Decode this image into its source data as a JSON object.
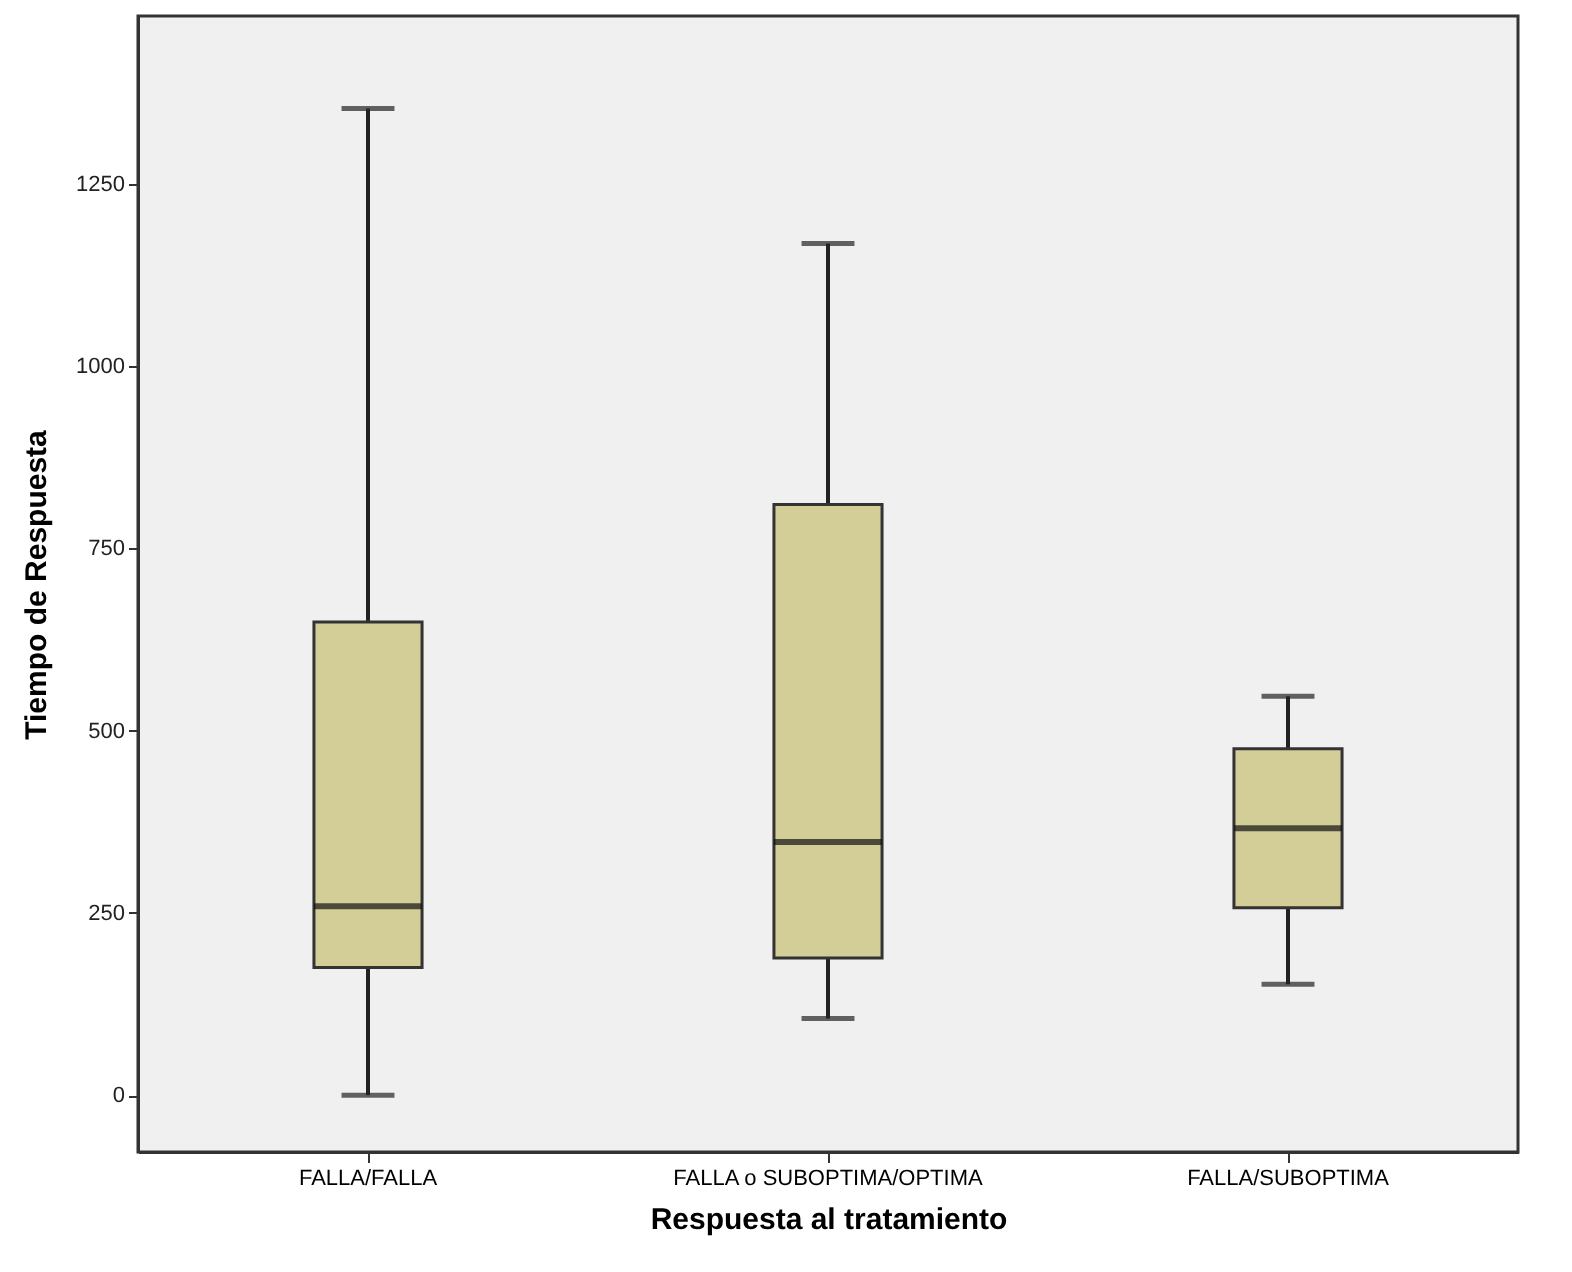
{
  "chart_data": {
    "type": "box",
    "xlabel": "Respuesta al tratamiento",
    "ylabel": "Tiempo de Respuesta",
    "categories": [
      "FALLA/FALLA",
      "FALLA o SUBOPTIMA/OPTIMA",
      "FALLA/SUBOPTIMA"
    ],
    "ylim": [
      -78,
      1480
    ],
    "yticks": [
      0,
      250,
      500,
      750,
      1000,
      1250
    ],
    "series": [
      {
        "color": "#d3ce97",
        "boxes": [
          {
            "low": 0,
            "q1": 175,
            "median": 259,
            "q3": 649,
            "high": 1353
          },
          {
            "low": 105,
            "q1": 188,
            "median": 347,
            "q3": 810,
            "high": 1168
          },
          {
            "low": 152,
            "q1": 257,
            "median": 366,
            "q3": 475,
            "high": 547
          }
        ]
      }
    ]
  }
}
